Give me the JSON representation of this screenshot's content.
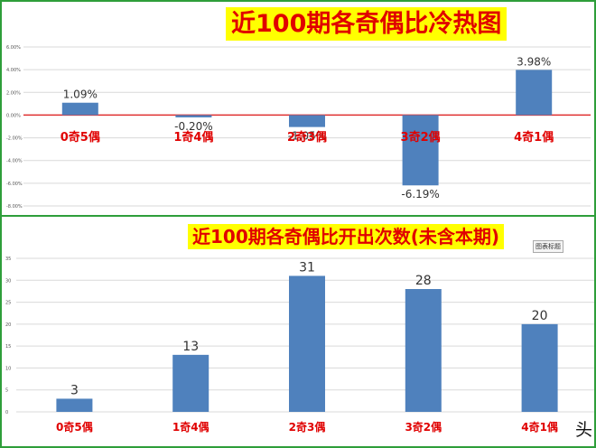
{
  "charts": {
    "top": {
      "title": "近100期各奇偶比冷热图"
    },
    "bottom": {
      "title": "近100期各奇偶比开出次数(未含本期)",
      "tag": "图表标题"
    }
  },
  "corner_glyph": "头",
  "chart_data": [
    {
      "type": "bar",
      "title": "近100期各奇偶比冷热图",
      "categories": [
        "0奇5偶",
        "1奇4偶",
        "2奇3偶",
        "3奇2偶",
        "4奇1偶"
      ],
      "values": [
        1.09,
        -0.2,
        -1.05,
        -6.19,
        3.98
      ],
      "data_labels": [
        "1.09%",
        "-0.20%",
        "-1.05%",
        "-6.19%",
        "3.98%"
      ],
      "y_ticks": [
        "6.00%",
        "4.00%",
        "2.00%",
        "0.00%",
        "-2.00%",
        "-4.00%",
        "-6.00%",
        "-8.00%"
      ],
      "ylim": [
        -8,
        6
      ],
      "grid": true,
      "bar_color": "#4f81bd",
      "zero_line_color": "#e03030",
      "category_label_color": "#e00000"
    },
    {
      "type": "bar",
      "title": "近100期各奇偶比开出次数(未含本期)",
      "categories": [
        "0奇5偶",
        "1奇4偶",
        "2奇3偶",
        "3奇2偶",
        "4奇1偶"
      ],
      "values": [
        3,
        13,
        31,
        28,
        20
      ],
      "data_labels": [
        "3",
        "13",
        "31",
        "28",
        "20"
      ],
      "y_ticks": [
        "35",
        "30",
        "25",
        "20",
        "15",
        "10",
        "5",
        "0"
      ],
      "ylim": [
        0,
        35
      ],
      "grid": true,
      "bar_color": "#4f81bd",
      "category_label_color": "#e00000"
    }
  ]
}
